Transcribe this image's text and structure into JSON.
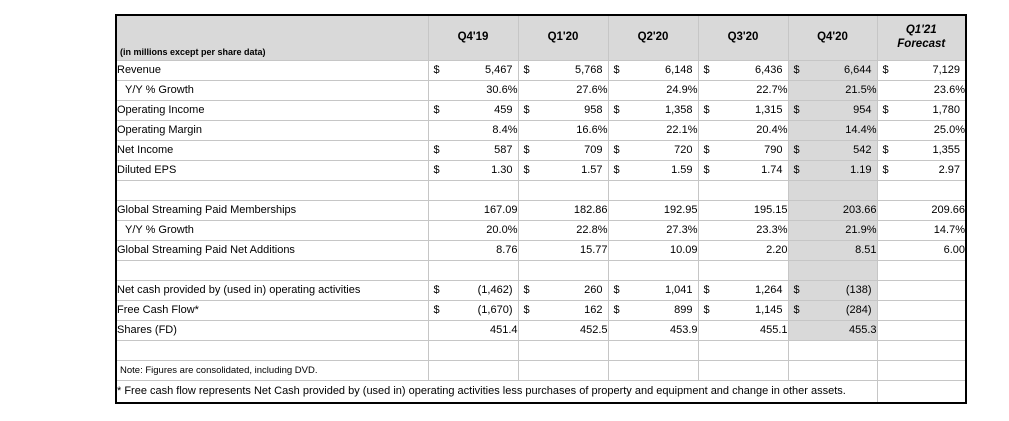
{
  "table": {
    "unit_label": "(in millions except per share data)",
    "columns": [
      {
        "label": "Q4'19",
        "italic": false
      },
      {
        "label": "Q1'20",
        "italic": false
      },
      {
        "label": "Q2'20",
        "italic": false
      },
      {
        "label": "Q3'20",
        "italic": false
      },
      {
        "label": "Q4'20",
        "italic": false
      },
      {
        "label": "Q1'21",
        "label2": "Forecast",
        "italic": true
      }
    ],
    "highlight_column_index": 4,
    "colors": {
      "header_bg": "#d9d9d9",
      "highlight_bg": "#d9d9d9",
      "gridline": "#c6c6c6",
      "outer_border": "#000000",
      "text": "#000000"
    },
    "rows": [
      {
        "type": "data",
        "label": "Revenue",
        "dollar": true,
        "indent": false,
        "values": [
          "5,467",
          "5,768",
          "6,148",
          "6,436",
          "6,644",
          "7,129"
        ]
      },
      {
        "type": "data",
        "label": "Y/Y % Growth",
        "dollar": false,
        "indent": true,
        "values": [
          "30.6%",
          "27.6%",
          "24.9%",
          "22.7%",
          "21.5%",
          "23.6%"
        ]
      },
      {
        "type": "data",
        "label": "Operating Income",
        "dollar": true,
        "indent": false,
        "values": [
          "459",
          "958",
          "1,358",
          "1,315",
          "954",
          "1,780"
        ]
      },
      {
        "type": "data",
        "label": "Operating Margin",
        "dollar": false,
        "indent": false,
        "values": [
          "8.4%",
          "16.6%",
          "22.1%",
          "20.4%",
          "14.4%",
          "25.0%"
        ]
      },
      {
        "type": "data",
        "label": "Net Income",
        "dollar": true,
        "indent": false,
        "values": [
          "587",
          "709",
          "720",
          "790",
          "542",
          "1,355"
        ]
      },
      {
        "type": "data",
        "label": "Diluted EPS",
        "dollar": true,
        "indent": false,
        "values": [
          "1.30",
          "1.57",
          "1.59",
          "1.74",
          "1.19",
          "2.97"
        ]
      },
      {
        "type": "spacer"
      },
      {
        "type": "data",
        "label": "Global Streaming Paid Memberships",
        "dollar": false,
        "indent": false,
        "values": [
          "167.09",
          "182.86",
          "192.95",
          "195.15",
          "203.66",
          "209.66"
        ]
      },
      {
        "type": "data",
        "label": "Y/Y % Growth",
        "dollar": false,
        "indent": true,
        "values": [
          "20.0%",
          "22.8%",
          "27.3%",
          "23.3%",
          "21.9%",
          "14.7%"
        ]
      },
      {
        "type": "data",
        "label": "Global Streaming Paid Net Additions",
        "dollar": false,
        "indent": false,
        "values": [
          "8.76",
          "15.77",
          "10.09",
          "2.20",
          "8.51",
          "6.00"
        ]
      },
      {
        "type": "spacer"
      },
      {
        "type": "data",
        "label": "Net cash provided by (used in) operating activities",
        "dollar": true,
        "indent": false,
        "values": [
          "(1,462)",
          "260",
          "1,041",
          "1,264",
          "(138)",
          ""
        ]
      },
      {
        "type": "data",
        "label": "Free Cash Flow*",
        "dollar": true,
        "indent": false,
        "values": [
          "(1,670)",
          "162",
          "899",
          "1,145",
          "(284)",
          ""
        ]
      },
      {
        "type": "data",
        "label": "Shares (FD)",
        "dollar": false,
        "indent": false,
        "values": [
          "451.4",
          "452.5",
          "453.9",
          "455.1",
          "455.3",
          ""
        ]
      },
      {
        "type": "spacer-unshaded"
      },
      {
        "type": "note",
        "label": "Note: Figures are consolidated, including DVD."
      },
      {
        "type": "note-span",
        "label": "* Free cash flow represents Net Cash provided by (used in) operating activities less purchases of property and equipment and change in other assets."
      }
    ]
  }
}
